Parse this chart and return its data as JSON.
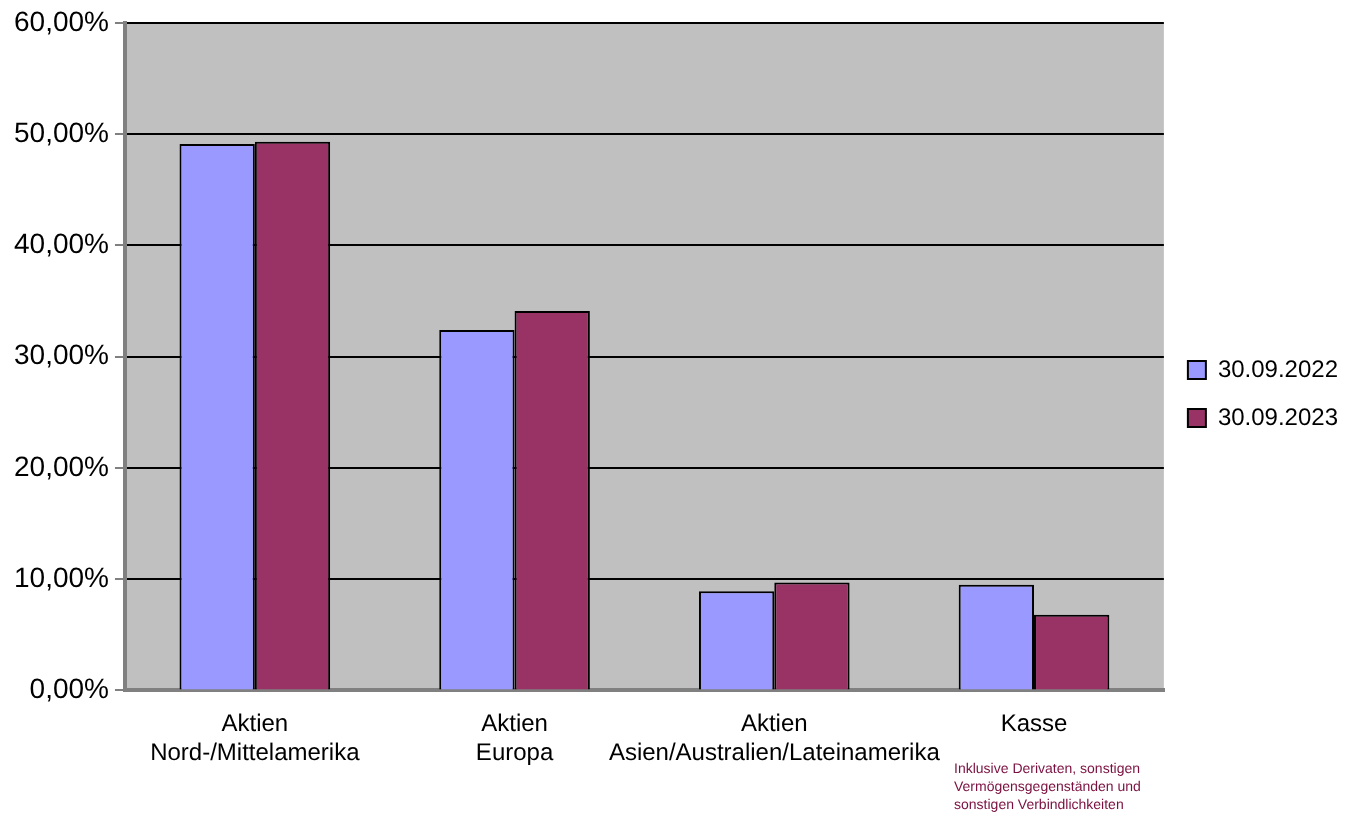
{
  "chart_data": {
    "type": "bar",
    "categories": [
      "Aktien\nNord-/Mittelamerika",
      "Aktien\nEuropa",
      "Aktien\nAsien/Australien/Lateinamerika",
      "Kasse"
    ],
    "series": [
      {
        "name": "30.09.2022",
        "color": "#9999ff",
        "values": [
          49.1,
          32.4,
          8.9,
          9.5
        ]
      },
      {
        "name": "30.09.2023",
        "color": "#993366",
        "values": [
          49.3,
          34.1,
          9.7,
          6.8
        ]
      }
    ],
    "ylim": [
      0,
      60
    ],
    "yticks": [
      {
        "value": 0,
        "label": "0,00%"
      },
      {
        "value": 10,
        "label": "10,00%"
      },
      {
        "value": 20,
        "label": "20,00%"
      },
      {
        "value": 30,
        "label": "30,00%"
      },
      {
        "value": 40,
        "label": "40,00%"
      },
      {
        "value": 50,
        "label": "50,00%"
      },
      {
        "value": 60,
        "label": "60,00%"
      }
    ],
    "grid": "y",
    "legend": "right",
    "annotations": [
      "Inklusive Derivaten, sonstigen\nVermögensgegenständen und\nsonstigen Verbindlichkeiten"
    ]
  }
}
